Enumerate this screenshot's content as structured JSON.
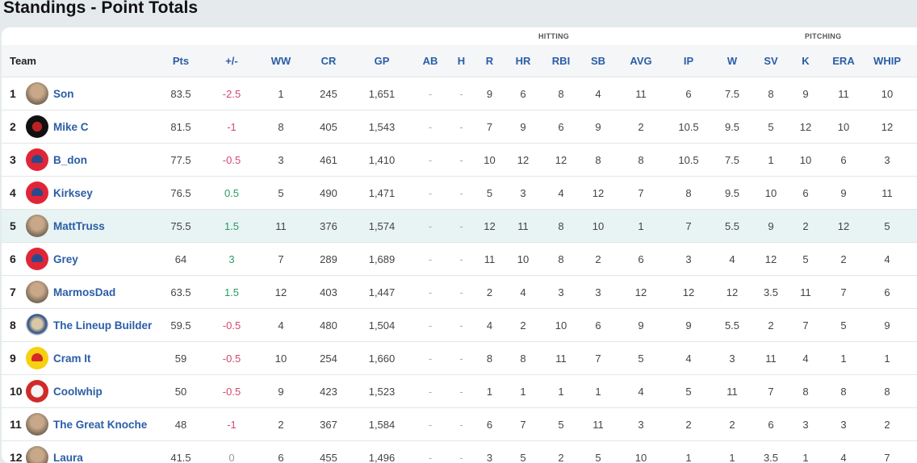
{
  "page": {
    "title": "Standings - Point Totals"
  },
  "groups": {
    "hitting": "HITTING",
    "pitching": "PITCHING"
  },
  "columns": {
    "team": "Team",
    "pts": "Pts",
    "plusminus": "+/-",
    "ww": "WW",
    "cr": "CR",
    "gp": "GP",
    "ab": "AB",
    "h": "H",
    "r": "R",
    "hr": "HR",
    "rbi": "RBI",
    "sb": "SB",
    "avg": "AVG",
    "ip": "IP",
    "w": "W",
    "sv": "SV",
    "k": "K",
    "era": "ERA",
    "whip": "WHIP"
  },
  "colors": {
    "link_blue": "#2b5da6",
    "negative": "#d9466e",
    "positive": "#2a9a63",
    "highlight_row": "#e8f3f3"
  },
  "rows": [
    {
      "rank": "1",
      "team": "Son",
      "avatar": "photo-avatar",
      "pts": "83.5",
      "pm": "-2.5",
      "pm_sign": "neg",
      "ww": "1",
      "cr": "245",
      "gp": "1,651",
      "ab": "-",
      "h": "-",
      "r": "9",
      "hr": "6",
      "rbi": "8",
      "sb": "4",
      "avg": "11",
      "ip": "6",
      "w": "7.5",
      "sv": "8",
      "k": "9",
      "era": "11",
      "whip": "10"
    },
    {
      "rank": "2",
      "team": "Mike C",
      "avatar": "logo-avatar",
      "pts": "81.5",
      "pm": "-1",
      "pm_sign": "neg",
      "ww": "8",
      "cr": "405",
      "gp": "1,543",
      "ab": "-",
      "h": "-",
      "r": "7",
      "hr": "9",
      "rbi": "6",
      "sb": "9",
      "avg": "2",
      "ip": "10.5",
      "w": "9.5",
      "sv": "5",
      "k": "12",
      "era": "10",
      "whip": "12"
    },
    {
      "rank": "3",
      "team": "B_don",
      "avatar": "cap-avatar",
      "pts": "77.5",
      "pm": "-0.5",
      "pm_sign": "neg",
      "ww": "3",
      "cr": "461",
      "gp": "1,410",
      "ab": "-",
      "h": "-",
      "r": "10",
      "hr": "12",
      "rbi": "12",
      "sb": "8",
      "avg": "8",
      "ip": "10.5",
      "w": "7.5",
      "sv": "1",
      "k": "10",
      "era": "6",
      "whip": "3"
    },
    {
      "rank": "4",
      "team": "Kirksey",
      "avatar": "cap-avatar",
      "pts": "76.5",
      "pm": "0.5",
      "pm_sign": "pos",
      "ww": "5",
      "cr": "490",
      "gp": "1,471",
      "ab": "-",
      "h": "-",
      "r": "5",
      "hr": "3",
      "rbi": "4",
      "sb": "12",
      "avg": "7",
      "ip": "8",
      "w": "9.5",
      "sv": "10",
      "k": "6",
      "era": "9",
      "whip": "11"
    },
    {
      "rank": "5",
      "team": "MattTruss",
      "avatar": "photo-avatar",
      "pts": "75.5",
      "pm": "1.5",
      "pm_sign": "pos",
      "ww": "11",
      "cr": "376",
      "gp": "1,574",
      "ab": "-",
      "h": "-",
      "r": "12",
      "hr": "11",
      "rbi": "8",
      "sb": "10",
      "avg": "1",
      "ip": "7",
      "w": "5.5",
      "sv": "9",
      "k": "2",
      "era": "12",
      "whip": "5",
      "highlight": true
    },
    {
      "rank": "6",
      "team": "Grey",
      "avatar": "cap-avatar",
      "pts": "64",
      "pm": "3",
      "pm_sign": "pos",
      "ww": "7",
      "cr": "289",
      "gp": "1,689",
      "ab": "-",
      "h": "-",
      "r": "11",
      "hr": "10",
      "rbi": "8",
      "sb": "2",
      "avg": "6",
      "ip": "3",
      "w": "4",
      "sv": "12",
      "k": "5",
      "era": "2",
      "whip": "4"
    },
    {
      "rank": "7",
      "team": "MarmosDad",
      "avatar": "photo-avatar",
      "pts": "63.5",
      "pm": "1.5",
      "pm_sign": "pos",
      "ww": "12",
      "cr": "403",
      "gp": "1,447",
      "ab": "-",
      "h": "-",
      "r": "2",
      "hr": "4",
      "rbi": "3",
      "sb": "3",
      "avg": "12",
      "ip": "12",
      "w": "12",
      "sv": "3.5",
      "k": "11",
      "era": "7",
      "whip": "6"
    },
    {
      "rank": "8",
      "team": "The Lineup Builder",
      "avatar": "cartoon-avatar",
      "pts": "59.5",
      "pm": "-0.5",
      "pm_sign": "neg",
      "ww": "4",
      "cr": "480",
      "gp": "1,504",
      "ab": "-",
      "h": "-",
      "r": "4",
      "hr": "2",
      "rbi": "10",
      "sb": "6",
      "avg": "9",
      "ip": "9",
      "w": "5.5",
      "sv": "2",
      "k": "7",
      "era": "5",
      "whip": "9"
    },
    {
      "rank": "9",
      "team": "Cram It",
      "avatar": "cap-avatar-yellow",
      "pts": "59",
      "pm": "-0.5",
      "pm_sign": "neg",
      "ww": "10",
      "cr": "254",
      "gp": "1,660",
      "ab": "-",
      "h": "-",
      "r": "8",
      "hr": "8",
      "rbi": "11",
      "sb": "7",
      "avg": "5",
      "ip": "4",
      "w": "3",
      "sv": "11",
      "k": "4",
      "era": "1",
      "whip": "1"
    },
    {
      "rank": "10",
      "team": "Coolwhip",
      "avatar": "logo-avatar-red",
      "pts": "50",
      "pm": "-0.5",
      "pm_sign": "neg",
      "ww": "9",
      "cr": "423",
      "gp": "1,523",
      "ab": "-",
      "h": "-",
      "r": "1",
      "hr": "1",
      "rbi": "1",
      "sb": "1",
      "avg": "4",
      "ip": "5",
      "w": "11",
      "sv": "7",
      "k": "8",
      "era": "8",
      "whip": "8"
    },
    {
      "rank": "11",
      "team": "The Great Knoche",
      "avatar": "photo-avatar",
      "pts": "48",
      "pm": "-1",
      "pm_sign": "neg",
      "ww": "2",
      "cr": "367",
      "gp": "1,584",
      "ab": "-",
      "h": "-",
      "r": "6",
      "hr": "7",
      "rbi": "5",
      "sb": "11",
      "avg": "3",
      "ip": "2",
      "w": "2",
      "sv": "6",
      "k": "3",
      "era": "3",
      "whip": "2"
    },
    {
      "rank": "12",
      "team": "Laura",
      "avatar": "photo-avatar",
      "pts": "41.5",
      "pm": "0",
      "pm_sign": "zero",
      "ww": "6",
      "cr": "455",
      "gp": "1,496",
      "ab": "-",
      "h": "-",
      "r": "3",
      "hr": "5",
      "rbi": "2",
      "sb": "5",
      "avg": "10",
      "ip": "1",
      "w": "1",
      "sv": "3.5",
      "k": "1",
      "era": "4",
      "whip": "7"
    }
  ]
}
